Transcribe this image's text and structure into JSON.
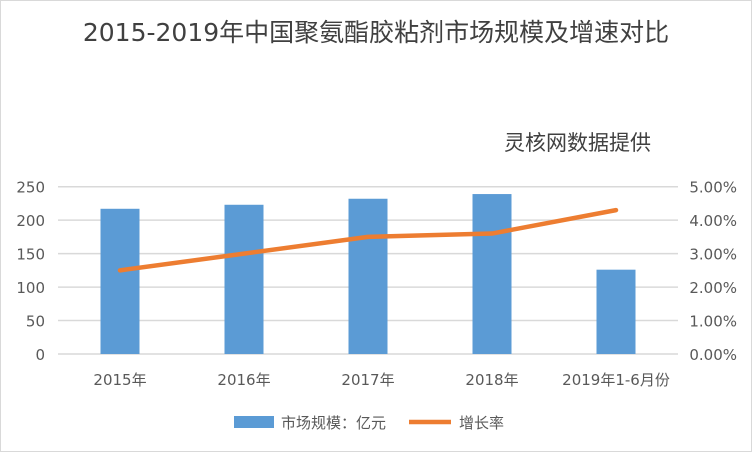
{
  "chart_data": {
    "type": "bar",
    "title": "2015-2019年中国聚氨酯胶粘剂市场规模及增速对比",
    "source_note": "灵核网数据提供",
    "categories": [
      "2015年",
      "2016年",
      "2017年",
      "2018年",
      "2019年1-6月份"
    ],
    "series": [
      {
        "name": "市场规模：亿元",
        "type": "bar",
        "axis": "left",
        "color": "#5B9BD5",
        "values": [
          217,
          223,
          232,
          239,
          126
        ]
      },
      {
        "name": "增长率",
        "type": "line",
        "axis": "right",
        "color": "#ED7D31",
        "values": [
          0.025,
          0.03,
          0.035,
          0.036,
          0.043
        ]
      }
    ],
    "y_left": {
      "ylim": [
        0,
        250
      ],
      "ticks": [
        "0",
        "50",
        "100",
        "150",
        "200",
        "250"
      ]
    },
    "y_right": {
      "ylim": [
        0,
        0.05
      ],
      "ticks": [
        "0.00%",
        "1.00%",
        "2.00%",
        "3.00%",
        "4.00%",
        "5.00%"
      ]
    },
    "grid": true,
    "legend": "bottom"
  }
}
